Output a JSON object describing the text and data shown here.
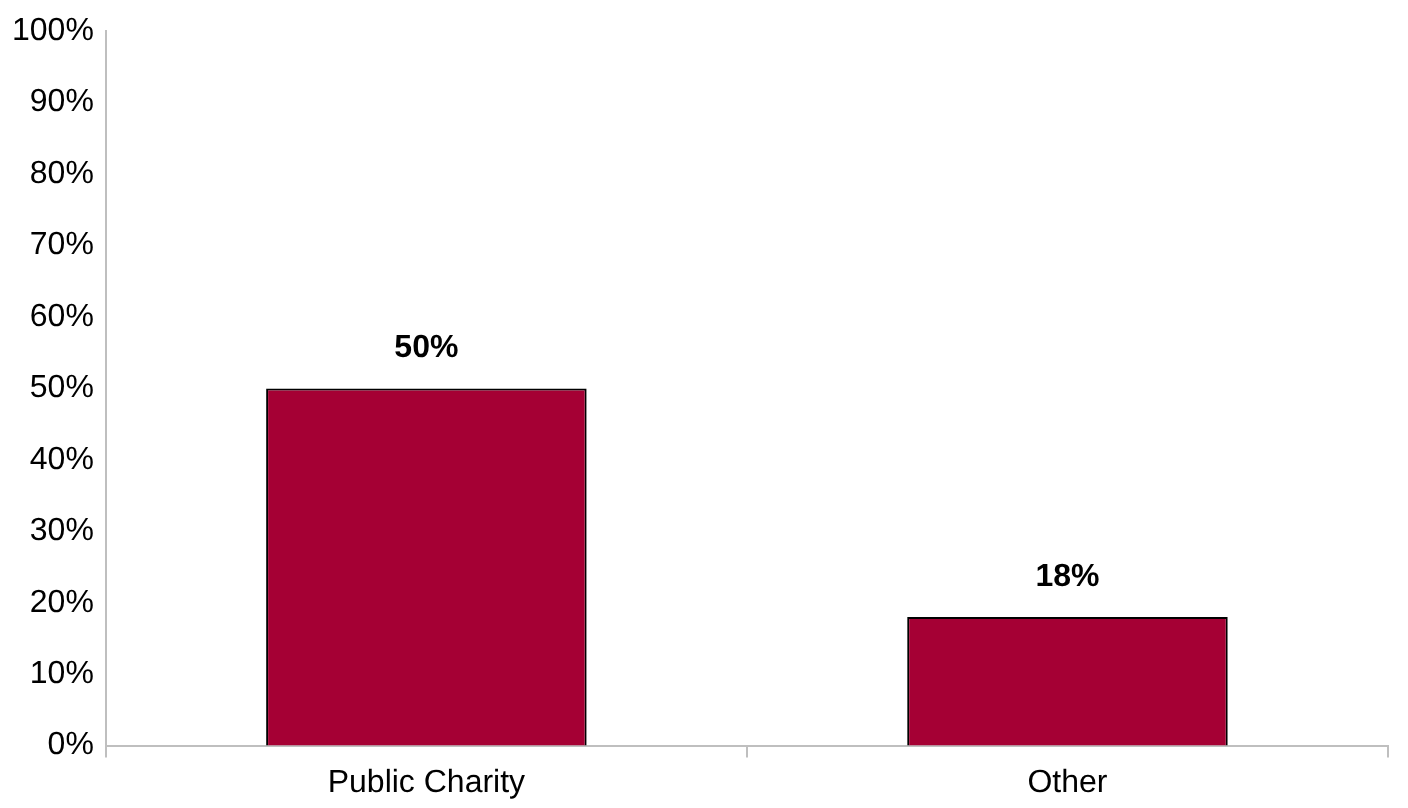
{
  "chart_data": {
    "type": "bar",
    "categories": [
      "Public Charity",
      "Other"
    ],
    "values": [
      50,
      18
    ],
    "color": "#a50034",
    "value_labels": [
      "50%",
      "18%"
    ],
    "ylim": [
      0,
      100
    ],
    "yticks": [
      {
        "value": 0,
        "label": "0%"
      },
      {
        "value": 10,
        "label": "10%"
      },
      {
        "value": 20,
        "label": "20%"
      },
      {
        "value": 30,
        "label": "30%"
      },
      {
        "value": 40,
        "label": "40%"
      },
      {
        "value": 50,
        "label": "50%"
      },
      {
        "value": 60,
        "label": "60%"
      },
      {
        "value": 70,
        "label": "70%"
      },
      {
        "value": 80,
        "label": "80%"
      },
      {
        "value": 90,
        "label": "90%"
      },
      {
        "value": 100,
        "label": "100%"
      }
    ],
    "grid": false,
    "legend": false
  }
}
